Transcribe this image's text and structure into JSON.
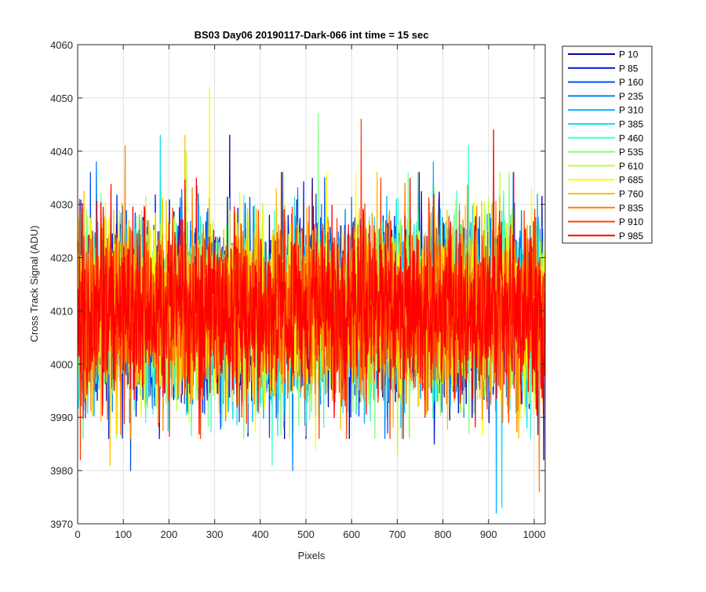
{
  "chart_data": {
    "type": "line",
    "title": "BS03 Day06 20190117-Dark-066 int time = 15 sec",
    "xlabel": "Pixels",
    "ylabel": "Cross Track Signal (ADU)",
    "xlim": [
      0,
      1024
    ],
    "ylim": [
      3970,
      4060
    ],
    "xticks": [
      "0",
      "100",
      "200",
      "300",
      "400",
      "500",
      "600",
      "700",
      "800",
      "900",
      "1000"
    ],
    "yticks": [
      "3970",
      "3980",
      "3990",
      "4000",
      "4010",
      "4020",
      "4030",
      "4040",
      "4050",
      "4060"
    ],
    "grid": true,
    "legend_placement": "outside-right",
    "n_points": 1024,
    "center_value": 4010,
    "spread": 8,
    "series": [
      {
        "name": "P 10",
        "color": "#0000A8",
        "peaks": [
          [
            332,
            4043
          ],
          [
            900,
            3989
          ],
          [
            1020,
            3982
          ]
        ]
      },
      {
        "name": "P 85",
        "color": "#0014D8",
        "peaks": [
          [
            447,
            4036
          ],
          [
            780,
            3985
          ]
        ]
      },
      {
        "name": "P 160",
        "color": "#0050F0",
        "peaks": [
          [
            540,
            4035
          ],
          [
            115,
            3980
          ]
        ]
      },
      {
        "name": "P 235",
        "color": "#0080FF",
        "peaks": [
          [
            40,
            4038
          ],
          [
            470,
            3980
          ]
        ]
      },
      {
        "name": "P 310",
        "color": "#00B0FF",
        "peaks": [
          [
            778,
            4038
          ],
          [
            916,
            3972
          ]
        ]
      },
      {
        "name": "P 385",
        "color": "#10E0F0",
        "peaks": [
          [
            180,
            4043
          ],
          [
            928,
            3973
          ]
        ]
      },
      {
        "name": "P 460",
        "color": "#40FFC8",
        "peaks": [
          [
            855,
            4041
          ],
          [
            425,
            3981
          ]
        ]
      },
      {
        "name": "P 535",
        "color": "#80FF80",
        "peaks": [
          [
            526,
            4047
          ],
          [
            650,
            3986
          ]
        ]
      },
      {
        "name": "P 610",
        "color": "#B8FF40",
        "peaks": [
          [
            237,
            4040
          ],
          [
            700,
            3983
          ]
        ]
      },
      {
        "name": "P 685",
        "color": "#FFFF00",
        "peaks": [
          [
            288,
            4052
          ],
          [
            520,
            3984
          ]
        ]
      },
      {
        "name": "P 760",
        "color": "#FFC000",
        "peaks": [
          [
            234,
            4043
          ],
          [
            70,
            3981
          ]
        ]
      },
      {
        "name": "P 835",
        "color": "#FF8000",
        "peaks": [
          [
            103,
            4041
          ],
          [
            1010,
            3976
          ]
        ]
      },
      {
        "name": "P 910",
        "color": "#FF4000",
        "peaks": [
          [
            620,
            4046
          ],
          [
            5,
            3982
          ]
        ]
      },
      {
        "name": "P 985",
        "color": "#FF0000",
        "peaks": [
          [
            910,
            4044
          ],
          [
            760,
            3990
          ]
        ]
      }
    ]
  }
}
